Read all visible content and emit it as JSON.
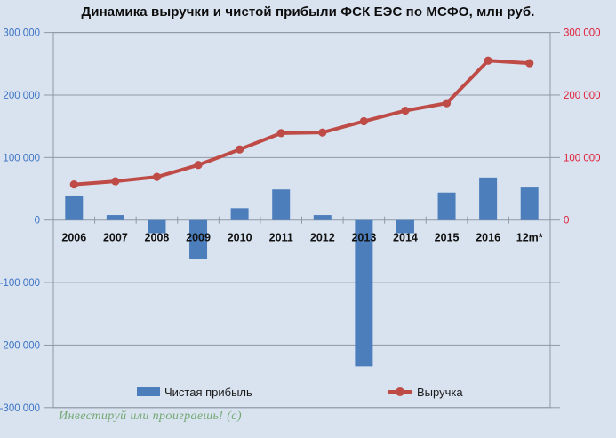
{
  "title": "Динамика выручки и чистой прибыли ФСК ЕЭС по МСФО, млн руб.",
  "watermark": "Инвестируй или проиграешь! (с)",
  "colors": {
    "background": "#d9e3f0",
    "plot_line": "#8e99a6",
    "bar": "#4d7ebc",
    "line": "#bf4b47",
    "left_axis_label": "#3d73c4",
    "right_axis_label": "#e02039",
    "text": "#111111",
    "watermark": "#74a874"
  },
  "chart_data": {
    "type": "bar+line",
    "title": "Динамика выручки и чистой прибыли ФСК ЕЭС по МСФО, млн руб.",
    "ylabel": "млн руб.",
    "categories": [
      "2006",
      "2007",
      "2008",
      "2009",
      "2010",
      "2011",
      "2012",
      "2013",
      "2014",
      "2015",
      "2016",
      "12m*"
    ],
    "series": [
      {
        "name": "Чистая прибыль",
        "type": "bar",
        "color": "#4d7ebc",
        "values": [
          38000,
          8000,
          -21000,
          -62000,
          19000,
          49000,
          8000,
          -234000,
          -21000,
          44000,
          68000,
          52000
        ]
      },
      {
        "name": "Выручка",
        "type": "line",
        "color": "#bf4b47",
        "values": [
          57000,
          62000,
          69000,
          88000,
          113000,
          139000,
          140000,
          158000,
          175000,
          187000,
          255000,
          251000
        ]
      }
    ],
    "left_axis": {
      "min": -300000,
      "max": 300000,
      "step": 100000,
      "tick_labels": [
        "300 000",
        "200 000",
        "100 000",
        "0",
        "-100 000",
        "-200 000",
        "-300 000"
      ],
      "color": "#3d73c4"
    },
    "right_axis": {
      "tick_values": [
        300000,
        200000,
        100000,
        0
      ],
      "tick_labels": [
        "300 000",
        "200 000",
        "100 000",
        "0"
      ],
      "color": "#e02039"
    },
    "grid": true,
    "legend_position": "bottom-inside"
  },
  "legend": {
    "net_profit_label": "Чистая прибыль",
    "revenue_label": "Выручка"
  }
}
